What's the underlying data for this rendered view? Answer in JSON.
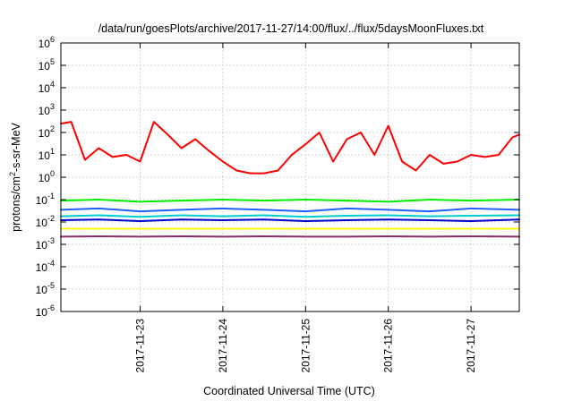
{
  "chart_data": {
    "type": "line",
    "title": "/data/run/goesPlots/archive/2017-11-27/14:00/flux/../flux/5daysMoonFluxes.txt",
    "xlabel": "Coordinated Universal Time (UTC)",
    "ylabel": "protons/cm²-s-sr-MeV",
    "ylabel_parts": {
      "before": "protons/cm",
      "sup": "2",
      "after": "-s-sr-MeV"
    },
    "yscale": "log",
    "ylim": [
      1e-06,
      1000000.0
    ],
    "xlim": [
      "2017-11-22T01:00",
      "2017-11-27T14:00"
    ],
    "grid": true,
    "x_tick_labels": [
      "2017-11-23",
      "2017-11-24",
      "2017-11-25",
      "2017-11-26",
      "2017-11-27"
    ],
    "y_tick_labels": [
      {
        "base": "10",
        "exp": "-6"
      },
      {
        "base": "10",
        "exp": "-5"
      },
      {
        "base": "10",
        "exp": "-4"
      },
      {
        "base": "10",
        "exp": "-3"
      },
      {
        "base": "10",
        "exp": "-2"
      },
      {
        "base": "10",
        "exp": "-1"
      },
      {
        "base": "10",
        "exp": "0"
      },
      {
        "base": "10",
        "exp": "1"
      },
      {
        "base": "10",
        "exp": "2"
      },
      {
        "base": "10",
        "exp": "3"
      },
      {
        "base": "10",
        "exp": "4"
      },
      {
        "base": "10",
        "exp": "5"
      },
      {
        "base": "10",
        "exp": "6"
      }
    ],
    "series": [
      {
        "color": "#ff0000",
        "x": [
          "2017-11-22T01:00",
          "2017-11-22T04:00",
          "2017-11-22T08:00",
          "2017-11-22T12:00",
          "2017-11-22T16:00",
          "2017-11-22T20:00",
          "2017-11-23T00:00",
          "2017-11-23T04:00",
          "2017-11-23T08:00",
          "2017-11-23T12:00",
          "2017-11-23T16:00",
          "2017-11-23T20:00",
          "2017-11-24T00:00",
          "2017-11-24T04:00",
          "2017-11-24T08:00",
          "2017-11-24T12:00",
          "2017-11-24T16:00",
          "2017-11-24T20:00",
          "2017-11-25T00:00",
          "2017-11-25T04:00",
          "2017-11-25T08:00",
          "2017-11-25T12:00",
          "2017-11-25T16:00",
          "2017-11-25T20:00",
          "2017-11-26T00:00",
          "2017-11-26T04:00",
          "2017-11-26T08:00",
          "2017-11-26T12:00",
          "2017-11-26T16:00",
          "2017-11-26T20:00",
          "2017-11-27T00:00",
          "2017-11-27T04:00",
          "2017-11-27T08:00",
          "2017-11-27T12:00",
          "2017-11-27T14:00"
        ],
        "y": [
          250,
          300,
          6,
          20,
          8,
          10,
          5,
          300,
          80,
          20,
          50,
          15,
          5,
          2,
          1.5,
          1.5,
          2,
          10,
          30,
          100,
          5,
          50,
          100,
          10,
          200,
          5,
          2,
          10,
          4,
          5,
          10,
          8,
          10,
          60,
          80
        ]
      },
      {
        "color": "#00ee00",
        "x": [
          "2017-11-22T01:00",
          "2017-11-22T12:00",
          "2017-11-23T00:00",
          "2017-11-23T12:00",
          "2017-11-24T00:00",
          "2017-11-24T12:00",
          "2017-11-25T00:00",
          "2017-11-25T12:00",
          "2017-11-26T00:00",
          "2017-11-26T12:00",
          "2017-11-27T00:00",
          "2017-11-27T14:00"
        ],
        "y": [
          0.09,
          0.1,
          0.08,
          0.09,
          0.1,
          0.09,
          0.1,
          0.09,
          0.08,
          0.1,
          0.09,
          0.1
        ]
      },
      {
        "color": "#1f5fff",
        "x": [
          "2017-11-22T01:00",
          "2017-11-22T12:00",
          "2017-11-23T00:00",
          "2017-11-23T12:00",
          "2017-11-24T00:00",
          "2017-11-24T12:00",
          "2017-11-25T00:00",
          "2017-11-25T12:00",
          "2017-11-26T00:00",
          "2017-11-26T12:00",
          "2017-11-27T00:00",
          "2017-11-27T14:00"
        ],
        "y": [
          0.035,
          0.04,
          0.03,
          0.035,
          0.04,
          0.035,
          0.03,
          0.04,
          0.035,
          0.03,
          0.04,
          0.035
        ]
      },
      {
        "color": "#00cccc",
        "x": [
          "2017-11-22T01:00",
          "2017-11-22T12:00",
          "2017-11-23T00:00",
          "2017-11-23T12:00",
          "2017-11-24T00:00",
          "2017-11-24T12:00",
          "2017-11-25T00:00",
          "2017-11-25T12:00",
          "2017-11-26T00:00",
          "2017-11-26T12:00",
          "2017-11-27T00:00",
          "2017-11-27T14:00"
        ],
        "y": [
          0.018,
          0.02,
          0.017,
          0.02,
          0.018,
          0.02,
          0.017,
          0.019,
          0.02,
          0.018,
          0.019,
          0.02
        ]
      },
      {
        "color": "#0000cc",
        "x": [
          "2017-11-22T01:00",
          "2017-11-22T12:00",
          "2017-11-23T00:00",
          "2017-11-23T12:00",
          "2017-11-24T00:00",
          "2017-11-24T12:00",
          "2017-11-25T00:00",
          "2017-11-25T12:00",
          "2017-11-26T00:00",
          "2017-11-26T12:00",
          "2017-11-27T00:00",
          "2017-11-27T14:00"
        ],
        "y": [
          0.012,
          0.013,
          0.011,
          0.013,
          0.012,
          0.013,
          0.011,
          0.012,
          0.013,
          0.012,
          0.011,
          0.013
        ]
      },
      {
        "color": "#ffff00",
        "x": [
          "2017-11-22T01:00",
          "2017-11-22T12:00",
          "2017-11-23T00:00",
          "2017-11-23T12:00",
          "2017-11-24T00:00",
          "2017-11-24T12:00",
          "2017-11-25T00:00",
          "2017-11-25T12:00",
          "2017-11-26T00:00",
          "2017-11-26T12:00",
          "2017-11-27T00:00",
          "2017-11-27T14:00"
        ],
        "y": [
          0.005,
          0.005,
          0.005,
          0.005,
          0.005,
          0.005,
          0.005,
          0.005,
          0.005,
          0.005,
          0.005,
          0.005
        ]
      },
      {
        "color": "#8b2d6b",
        "x": [
          "2017-11-22T01:00",
          "2017-11-22T12:00",
          "2017-11-23T00:00",
          "2017-11-23T12:00",
          "2017-11-24T00:00",
          "2017-11-24T12:00",
          "2017-11-25T00:00",
          "2017-11-25T12:00",
          "2017-11-26T00:00",
          "2017-11-26T12:00",
          "2017-11-27T00:00",
          "2017-11-27T14:00"
        ],
        "y": [
          0.0022,
          0.0023,
          0.0022,
          0.0023,
          0.0022,
          0.0023,
          0.0022,
          0.0022,
          0.0023,
          0.0022,
          0.0023,
          0.0022
        ]
      }
    ]
  }
}
